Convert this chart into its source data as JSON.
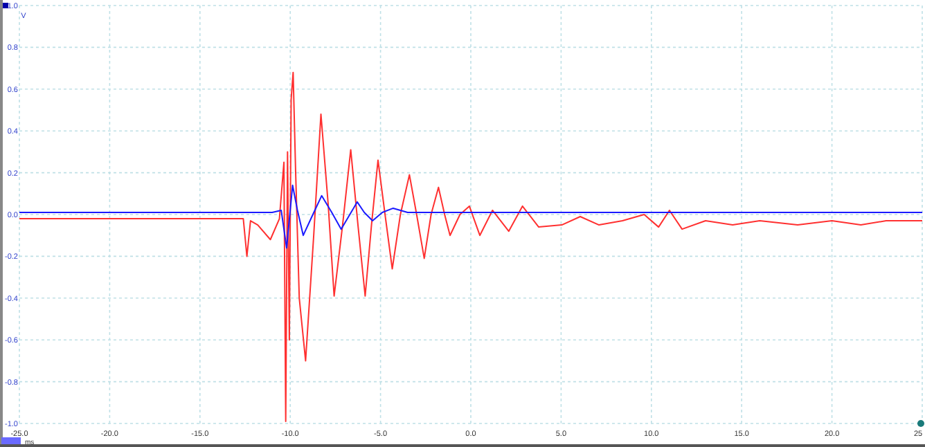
{
  "chart_data": {
    "type": "line",
    "xlabel": "ms",
    "ylabel": "V",
    "xlim": [
      -25,
      25
    ],
    "ylim": [
      -1,
      1
    ],
    "xticks": [
      {
        "value": -25,
        "label": "-25.0"
      },
      {
        "value": -20,
        "label": "-20.0"
      },
      {
        "value": -15,
        "label": "-15.0"
      },
      {
        "value": -10,
        "label": "-10.0"
      },
      {
        "value": -5,
        "label": "-5.0"
      },
      {
        "value": 0,
        "label": "0.0"
      },
      {
        "value": 5,
        "label": "5.0"
      },
      {
        "value": 10,
        "label": "10.0"
      },
      {
        "value": 15,
        "label": "15.0"
      },
      {
        "value": 20,
        "label": "20.0"
      },
      {
        "value": 25,
        "label": "25"
      }
    ],
    "yticks": [
      {
        "value": -1,
        "label": "-1.0"
      },
      {
        "value": -0.8,
        "label": "-0.8"
      },
      {
        "value": -0.6,
        "label": "-0.6"
      },
      {
        "value": -0.4,
        "label": "-0.4"
      },
      {
        "value": -0.2,
        "label": "-0.2"
      },
      {
        "value": 0,
        "label": "0.0"
      },
      {
        "value": 0.2,
        "label": "0.2"
      },
      {
        "value": 0.4,
        "label": "0.4"
      },
      {
        "value": 0.6,
        "label": "0.6"
      },
      {
        "value": 0.8,
        "label": "0.8"
      },
      {
        "value": 1,
        "label": "1.0"
      }
    ],
    "grid": true,
    "marker": "none",
    "line_style": "solid",
    "series": [
      {
        "color": "#ff3030",
        "x": [
          -25,
          -23,
          -21,
          -19,
          -17,
          -15,
          -13.5,
          -12.6,
          -12.4,
          -12.2,
          -11.8,
          -11.1,
          -10.6,
          -10.35,
          -10.25,
          -10.15,
          -10.05,
          -9.95,
          -9.84,
          -9.7,
          -9.5,
          -9.15,
          -8.7,
          -8.3,
          -7.9,
          -7.57,
          -7.1,
          -6.65,
          -6.25,
          -5.85,
          -5.5,
          -5.14,
          -4.75,
          -4.35,
          -3.9,
          -3.4,
          -3,
          -2.58,
          -2.2,
          -1.79,
          -1.45,
          -1.15,
          -0.6,
          -0.08,
          0.5,
          1.2,
          2.1,
          2.86,
          3.76,
          5.04,
          6.06,
          7.1,
          8.4,
          9.6,
          10.4,
          11,
          11.7,
          13,
          14.5,
          16,
          18.1,
          20,
          21.6,
          23,
          25
        ],
        "values": [
          -0.02,
          -0.02,
          -0.02,
          -0.02,
          -0.02,
          -0.02,
          -0.02,
          -0.02,
          -0.2,
          -0.03,
          -0.05,
          -0.12,
          -0.02,
          0.25,
          -0.99,
          0.3,
          -0.6,
          0.55,
          0.68,
          0.2,
          -0.4,
          -0.7,
          -0.1,
          0.48,
          0.05,
          -0.39,
          -0.05,
          0.31,
          -0.05,
          -0.39,
          -0.05,
          0.26,
          0,
          -0.26,
          0,
          0.19,
          0,
          -0.21,
          0,
          0.13,
          0,
          -0.1,
          0,
          0.04,
          -0.1,
          0.02,
          -0.08,
          0.04,
          -0.06,
          -0.05,
          -0.01,
          -0.05,
          -0.03,
          0,
          -0.06,
          0.02,
          -0.07,
          -0.03,
          -0.05,
          -0.03,
          -0.05,
          -0.03,
          -0.05,
          -0.03,
          -0.03
        ]
      },
      {
        "color": "#1a1aff",
        "x": [
          -25,
          -23,
          -21,
          -19,
          -17,
          -15,
          -13,
          -11,
          -10.5,
          -10.2,
          -9.87,
          -9.6,
          -9.28,
          -8.8,
          -8.26,
          -7.7,
          -7.18,
          -6.7,
          -6.29,
          -5.9,
          -5.44,
          -4.9,
          -4.3,
          -3.5,
          -2.5,
          -1,
          0,
          2,
          4,
          6,
          8,
          10,
          12,
          14,
          16,
          18,
          20,
          22,
          25
        ],
        "values": [
          0.01,
          0.01,
          0.01,
          0.01,
          0.01,
          0.01,
          0.01,
          0.01,
          0.02,
          -0.16,
          0.14,
          0.02,
          -0.1,
          -0.01,
          0.09,
          0.01,
          -0.07,
          0,
          0.06,
          0.01,
          -0.03,
          0.01,
          0.03,
          0.01,
          0.01,
          0.01,
          0.01,
          0.01,
          0.01,
          0.01,
          0.01,
          0.01,
          0.01,
          0.01,
          0.01,
          0.01,
          0.01,
          0.01,
          0.01
        ]
      }
    ]
  }
}
